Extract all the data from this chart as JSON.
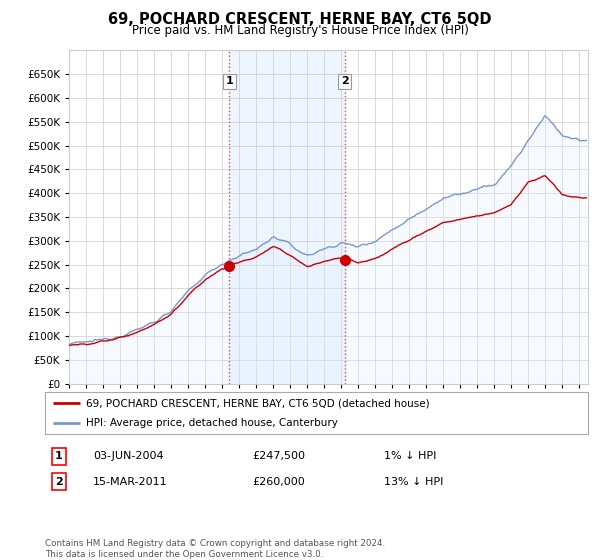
{
  "title": "69, POCHARD CRESCENT, HERNE BAY, CT6 5QD",
  "subtitle": "Price paid vs. HM Land Registry's House Price Index (HPI)",
  "legend_label_red": "69, POCHARD CRESCENT, HERNE BAY, CT6 5QD (detached house)",
  "legend_label_blue": "HPI: Average price, detached house, Canterbury",
  "transaction1_label": "1",
  "transaction1_date": "03-JUN-2004",
  "transaction1_price": "£247,500",
  "transaction1_hpi": "1% ↓ HPI",
  "transaction2_label": "2",
  "transaction2_date": "15-MAR-2011",
  "transaction2_price": "£260,000",
  "transaction2_hpi": "13% ↓ HPI",
  "footnote": "Contains HM Land Registry data © Crown copyright and database right 2024.\nThis data is licensed under the Open Government Licence v3.0.",
  "ylim_min": 0,
  "ylim_max": 700000,
  "yticks": [
    0,
    50000,
    100000,
    150000,
    200000,
    250000,
    300000,
    350000,
    400000,
    450000,
    500000,
    550000,
    600000,
    650000
  ],
  "color_red": "#cc0000",
  "color_blue": "#7799cc",
  "color_fill_blue": "#ddeeff",
  "color_shade": "#ddeeff",
  "background_color": "#ffffff",
  "grid_color": "#cccccc",
  "transaction_marker_color_red": "#cc0000",
  "transaction1_x": 2004.42,
  "transaction1_y": 247500,
  "transaction2_x": 2011.21,
  "transaction2_y": 260000,
  "xmin": 1995,
  "xmax": 2025.5,
  "hpi_anchors": [
    [
      1995,
      83000
    ],
    [
      1996,
      87000
    ],
    [
      1997,
      93000
    ],
    [
      1998,
      100000
    ],
    [
      1999,
      113000
    ],
    [
      2000,
      130000
    ],
    [
      2001,
      152000
    ],
    [
      2002,
      193000
    ],
    [
      2003,
      228000
    ],
    [
      2004,
      252000
    ],
    [
      2005,
      268000
    ],
    [
      2006,
      282000
    ],
    [
      2007,
      308000
    ],
    [
      2008,
      292000
    ],
    [
      2009,
      268000
    ],
    [
      2010,
      283000
    ],
    [
      2011,
      295000
    ],
    [
      2012,
      288000
    ],
    [
      2013,
      300000
    ],
    [
      2014,
      323000
    ],
    [
      2015,
      346000
    ],
    [
      2016,
      368000
    ],
    [
      2017,
      390000
    ],
    [
      2018,
      398000
    ],
    [
      2019,
      408000
    ],
    [
      2020,
      418000
    ],
    [
      2021,
      458000
    ],
    [
      2022,
      510000
    ],
    [
      2023,
      565000
    ],
    [
      2024,
      520000
    ],
    [
      2025,
      510000
    ]
  ],
  "red_anchors": [
    [
      1995,
      83000
    ],
    [
      1996,
      87000
    ],
    [
      1997,
      93000
    ],
    [
      1998,
      100000
    ],
    [
      1999,
      113000
    ],
    [
      2000,
      130000
    ],
    [
      2001,
      152000
    ],
    [
      2002,
      193000
    ],
    [
      2003,
      228000
    ],
    [
      2004,
      252000
    ],
    [
      2005,
      268000
    ],
    [
      2006,
      282000
    ],
    [
      2007,
      308000
    ],
    [
      2008,
      292000
    ],
    [
      2009,
      268000
    ],
    [
      2010,
      283000
    ],
    [
      2011,
      295000
    ],
    [
      2012,
      275000
    ],
    [
      2013,
      285000
    ],
    [
      2014,
      308000
    ],
    [
      2015,
      328000
    ],
    [
      2016,
      348000
    ],
    [
      2017,
      368000
    ],
    [
      2018,
      375000
    ],
    [
      2019,
      383000
    ],
    [
      2020,
      390000
    ],
    [
      2021,
      410000
    ],
    [
      2022,
      460000
    ],
    [
      2023,
      475000
    ],
    [
      2024,
      430000
    ],
    [
      2025,
      425000
    ]
  ]
}
